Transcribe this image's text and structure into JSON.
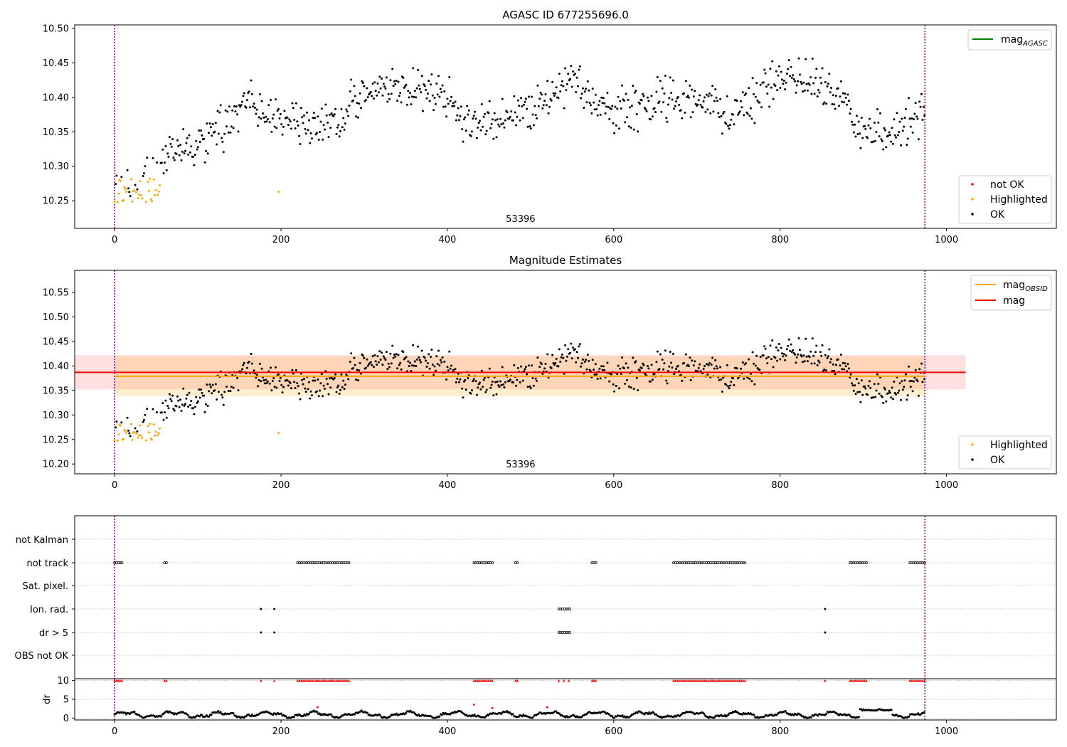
{
  "chart_data": [
    {
      "type": "scatter",
      "title": "AGASC ID 677255696.0",
      "annotation": "53396",
      "xlim": [
        -48,
        1132
      ],
      "ylim": [
        10.21,
        10.505
      ],
      "x_ticks": [
        0,
        200,
        400,
        600,
        800,
        1000
      ],
      "y_ticks": [
        10.25,
        10.3,
        10.35,
        10.4,
        10.45,
        10.5
      ],
      "vertical_lines": [
        0,
        974
      ],
      "lines": [
        {
          "name": "mag_AGASC",
          "label_main": "mag",
          "label_sub": "AGASC",
          "color": "#008000",
          "y": null
        }
      ],
      "legend_points": [
        {
          "name": "not OK",
          "color": "#ff0000"
        },
        {
          "name": "Highlighted",
          "color": "#ffa500"
        },
        {
          "name": "OK",
          "color": "#000000"
        }
      ],
      "grid": false
    },
    {
      "type": "scatter",
      "title": "Magnitude Estimates",
      "annotation": "53396",
      "xlim": [
        -48,
        1132
      ],
      "ylim": [
        10.18,
        10.595
      ],
      "x_ticks": [
        0,
        200,
        400,
        600,
        800,
        1000
      ],
      "y_ticks": [
        10.2,
        10.25,
        10.3,
        10.35,
        10.4,
        10.45,
        10.5,
        10.55
      ],
      "vertical_lines": [
        0,
        974
      ],
      "mag": {
        "value": 10.387,
        "band": [
          10.352,
          10.422
        ],
        "x_range": [
          -48,
          1023
        ],
        "color": "#ff0000"
      },
      "mag_obsid": {
        "value": 10.379,
        "band": [
          10.338,
          10.42
        ],
        "x_range": [
          0,
          974
        ],
        "color": "#ffa500"
      },
      "legend_lines": [
        {
          "label_main": "mag",
          "label_sub": "OBSID",
          "color": "#ffa500"
        },
        {
          "label_main": "mag",
          "label_sub": "",
          "color": "#ff0000"
        }
      ],
      "legend_points": [
        {
          "name": "Highlighted",
          "color": "#ffa500"
        },
        {
          "name": "OK",
          "color": "#000000"
        }
      ],
      "grid": false
    },
    {
      "type": "scatter",
      "title": "",
      "categories": [
        "OBS not OK",
        "dr > 5",
        "Ion. rad.",
        "Sat. pixel.",
        "not track",
        "not Kalman"
      ],
      "flag_intervals": {
        "not track": [
          [
            0,
            10
          ],
          [
            60,
            64
          ],
          [
            220,
            282
          ],
          [
            432,
            454
          ],
          [
            482,
            486
          ],
          [
            574,
            580
          ],
          [
            672,
            760
          ],
          [
            884,
            906
          ],
          [
            956,
            974
          ]
        ],
        "Ion. rad.": [
          [
            176,
            176
          ],
          [
            192,
            192
          ],
          [
            534,
            548
          ],
          [
            854,
            854
          ]
        ],
        "dr > 5": [
          [
            176,
            176
          ],
          [
            192,
            192
          ],
          [
            534,
            548
          ],
          [
            854,
            854
          ]
        ],
        "Sat. pixel.": [],
        "not Kalman": [],
        "OBS not OK": []
      },
      "vertical_lines": [
        0,
        974
      ],
      "grid": "y-dotted"
    },
    {
      "type": "scatter",
      "title": "",
      "ylabel": "dr",
      "xlim": [
        -48,
        1132
      ],
      "ylim": [
        -0.5,
        10.5
      ],
      "x_ticks": [
        0,
        200,
        400,
        600,
        800,
        1000
      ],
      "y_ticks": [
        0,
        5,
        10
      ],
      "vertical_lines": [
        0,
        974
      ],
      "capped_at": 10,
      "outliers": [
        [
          244,
          2.9
        ],
        [
          432,
          3.6
        ],
        [
          454,
          2.7
        ],
        [
          520,
          2.9
        ]
      ],
      "grid": "y-dotted"
    }
  ]
}
